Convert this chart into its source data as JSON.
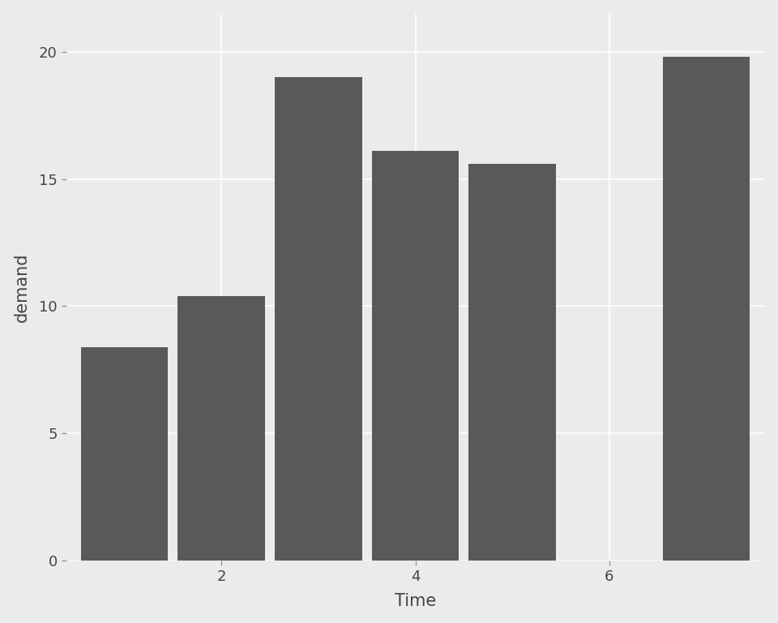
{
  "x_values": [
    1,
    2,
    3,
    4,
    5,
    7
  ],
  "y_values": [
    8.4,
    10.4,
    19.0,
    16.1,
    15.6,
    19.8
  ],
  "bar_color": "#595959",
  "bar_width": 0.9,
  "background_color": "#EBEBEB",
  "panel_background": "#EBEBEB",
  "grid_color": "#FFFFFF",
  "xlabel": "Time",
  "ylabel": "demand",
  "xlim": [
    0.4,
    7.6
  ],
  "ylim": [
    0,
    21.5
  ],
  "xticks": [
    2,
    4,
    6
  ],
  "yticks": [
    0,
    5,
    10,
    15,
    20
  ],
  "xlabel_fontsize": 15,
  "ylabel_fontsize": 15,
  "tick_fontsize": 13,
  "label_color": "#444444"
}
